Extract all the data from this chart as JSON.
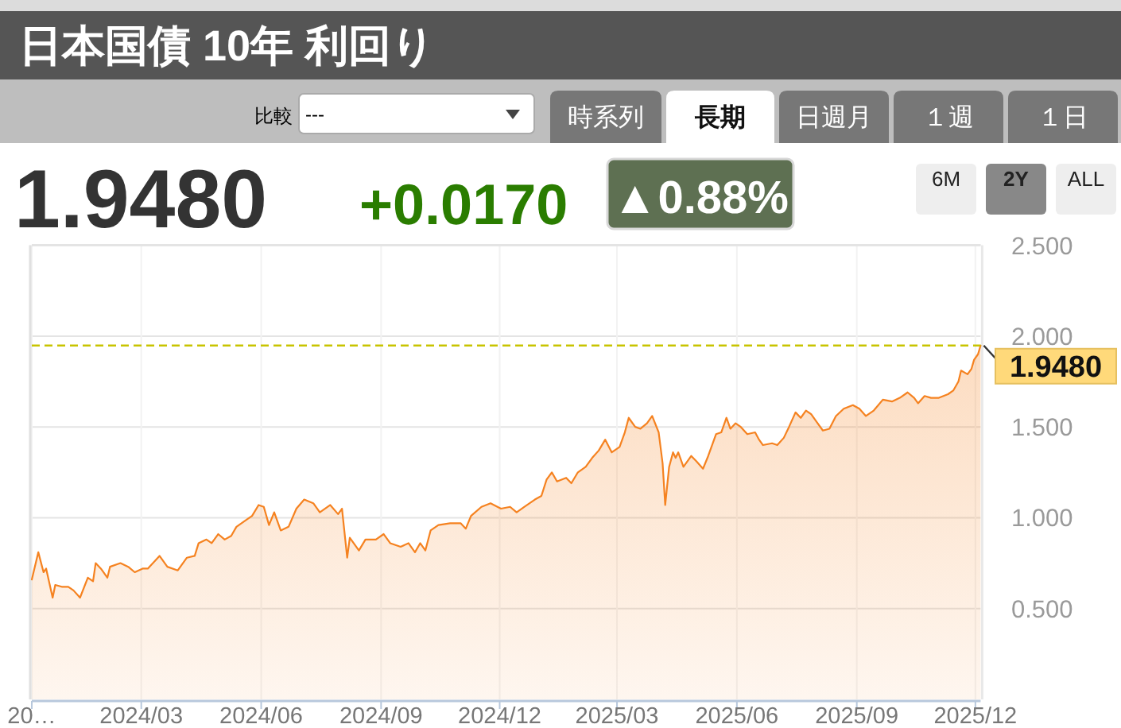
{
  "chart_data": {
    "type": "area",
    "title": "日本国債 10年 利回り",
    "x": [
      "2023-12-08",
      "2023-12-13",
      "2023-12-17",
      "2023-12-19",
      "2023-12-24",
      "2023-12-26",
      "2023-12-31",
      "2024-01-05",
      "2024-01-09",
      "2024-01-14",
      "2024-01-20",
      "2024-01-24",
      "2024-01-26",
      "2024-01-30",
      "2024-02-04",
      "2024-02-06",
      "2024-02-14",
      "2024-02-20",
      "2024-02-25",
      "2024-03-02",
      "2024-03-06",
      "2024-03-15",
      "2024-03-21",
      "2024-03-29",
      "2024-04-05",
      "2024-04-11",
      "2024-04-14",
      "2024-04-20",
      "2024-04-24",
      "2024-04-29",
      "2024-05-04",
      "2024-05-09",
      "2024-05-13",
      "2024-05-21",
      "2024-05-25",
      "2024-05-30",
      "2024-06-03",
      "2024-06-07",
      "2024-06-11",
      "2024-06-16",
      "2024-06-22",
      "2024-06-28",
      "2024-07-04",
      "2024-07-11",
      "2024-07-16",
      "2024-07-24",
      "2024-07-30",
      "2024-08-02",
      "2024-08-06",
      "2024-08-08",
      "2024-08-15",
      "2024-08-20",
      "2024-08-28",
      "2024-09-03",
      "2024-09-08",
      "2024-09-16",
      "2024-09-22",
      "2024-09-27",
      "2024-10-01",
      "2024-10-05",
      "2024-10-09",
      "2024-10-15",
      "2024-10-24",
      "2024-11-01",
      "2024-11-05",
      "2024-11-09",
      "2024-11-17",
      "2024-11-24",
      "2024-12-02",
      "2024-12-09",
      "2024-12-14",
      "2024-12-20",
      "2024-12-28",
      "2025-01-02",
      "2025-01-06",
      "2025-01-10",
      "2025-01-14",
      "2025-01-21",
      "2025-01-25",
      "2025-01-30",
      "2025-02-05",
      "2025-02-10",
      "2025-02-15",
      "2025-02-20",
      "2025-02-25",
      "2025-03-03",
      "2025-03-07",
      "2025-03-10",
      "2025-03-15",
      "2025-03-19",
      "2025-03-24",
      "2025-03-28",
      "2025-04-02",
      "2025-04-05",
      "2025-04-07",
      "2025-04-10",
      "2025-04-13",
      "2025-04-15",
      "2025-04-17",
      "2025-04-21",
      "2025-04-27",
      "2025-05-01",
      "2025-05-06",
      "2025-05-10",
      "2025-05-16",
      "2025-05-20",
      "2025-05-24",
      "2025-05-27",
      "2025-05-31",
      "2025-06-04",
      "2025-06-09",
      "2025-06-15",
      "2025-06-18",
      "2025-06-21",
      "2025-06-28",
      "2025-07-02",
      "2025-07-07",
      "2025-07-11",
      "2025-07-16",
      "2025-07-20",
      "2025-07-24",
      "2025-07-28",
      "2025-08-01",
      "2025-08-06",
      "2025-08-11",
      "2025-08-16",
      "2025-08-22",
      "2025-08-29",
      "2025-09-03",
      "2025-09-08",
      "2025-09-14",
      "2025-09-21",
      "2025-09-28",
      "2025-10-04",
      "2025-10-10",
      "2025-10-15",
      "2025-10-18",
      "2025-10-23",
      "2025-10-28",
      "2025-11-03",
      "2025-11-10",
      "2025-11-14",
      "2025-11-18",
      "2025-11-20",
      "2025-11-25",
      "2025-11-28",
      "2025-11-30",
      "2025-12-03",
      "2025-12-05"
    ],
    "values": [
      0.66,
      0.81,
      0.7,
      0.72,
      0.56,
      0.63,
      0.62,
      0.62,
      0.6,
      0.56,
      0.67,
      0.65,
      0.75,
      0.72,
      0.67,
      0.73,
      0.75,
      0.73,
      0.7,
      0.72,
      0.72,
      0.79,
      0.73,
      0.71,
      0.78,
      0.79,
      0.86,
      0.88,
      0.86,
      0.91,
      0.88,
      0.9,
      0.95,
      0.99,
      1.01,
      1.07,
      1.06,
      0.96,
      1.03,
      0.93,
      0.95,
      1.05,
      1.1,
      1.08,
      1.03,
      1.07,
      1.02,
      1.05,
      0.78,
      0.89,
      0.82,
      0.88,
      0.88,
      0.91,
      0.86,
      0.84,
      0.86,
      0.81,
      0.86,
      0.82,
      0.93,
      0.96,
      0.97,
      0.97,
      0.94,
      1.01,
      1.06,
      1.08,
      1.05,
      1.06,
      1.03,
      1.06,
      1.1,
      1.12,
      1.21,
      1.25,
      1.2,
      1.22,
      1.19,
      1.25,
      1.28,
      1.33,
      1.37,
      1.43,
      1.36,
      1.39,
      1.47,
      1.55,
      1.5,
      1.49,
      1.52,
      1.56,
      1.47,
      1.3,
      1.07,
      1.28,
      1.36,
      1.33,
      1.36,
      1.28,
      1.34,
      1.31,
      1.27,
      1.34,
      1.46,
      1.47,
      1.55,
      1.49,
      1.52,
      1.5,
      1.46,
      1.47,
      1.43,
      1.4,
      1.41,
      1.4,
      1.44,
      1.5,
      1.58,
      1.55,
      1.59,
      1.57,
      1.53,
      1.48,
      1.49,
      1.56,
      1.6,
      1.62,
      1.6,
      1.56,
      1.59,
      1.65,
      1.64,
      1.66,
      1.69,
      1.66,
      1.63,
      1.67,
      1.66,
      1.66,
      1.68,
      1.7,
      1.75,
      1.81,
      1.79,
      1.82,
      1.87,
      1.9,
      1.948
    ],
    "color": "#f58220",
    "xlim": [
      "2023-12-08",
      "2025-12-05"
    ],
    "xticks": [
      {
        "value": "2023-12-08",
        "label": "20…"
      },
      {
        "value": "2024-03-01",
        "label": "2024/03"
      },
      {
        "value": "2024-06-01",
        "label": "2024/06"
      },
      {
        "value": "2024-09-01",
        "label": "2024/09"
      },
      {
        "value": "2024-12-01",
        "label": "2024/12"
      },
      {
        "value": "2025-03-01",
        "label": "2025/03"
      },
      {
        "value": "2025-06-01",
        "label": "2025/06"
      },
      {
        "value": "2025-09-01",
        "label": "2025/09"
      },
      {
        "value": "2025-12-01",
        "label": "2025/12"
      }
    ],
    "ylim": [
      0,
      2.5
    ],
    "yticks": [
      {
        "value": 0.5,
        "label": "0.500"
      },
      {
        "value": 1.0,
        "label": "1.000"
      },
      {
        "value": 1.5,
        "label": "1.500"
      },
      {
        "value": 2.0,
        "label": "2.000"
      },
      {
        "value": 2.5,
        "label": "2.500"
      }
    ],
    "grid": true,
    "ref_lines": [
      {
        "axis": "y",
        "value": 1.948,
        "label": "1.9480",
        "color": "#c8c400",
        "line_style": "dashed"
      }
    ],
    "annotations": [
      "比較",
      "---",
      "時系列",
      "長期",
      "日週月",
      "１週",
      "１日",
      "1.9480",
      "+0.0170",
      "▲0.88%",
      "6M",
      "2Y",
      "ALL"
    ]
  }
}
